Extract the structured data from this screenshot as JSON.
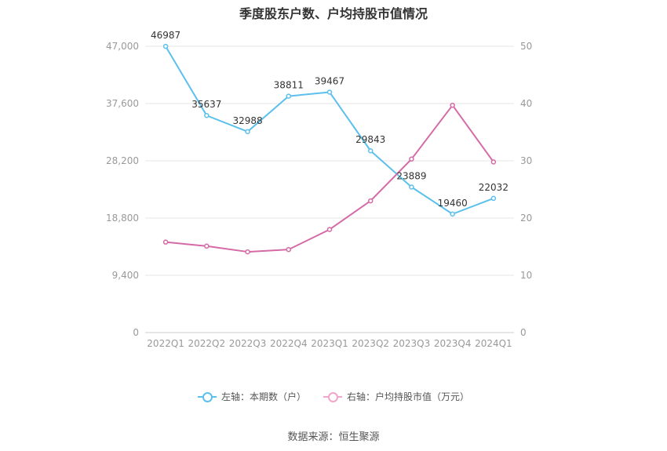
{
  "chart_data": {
    "type": "line",
    "title": "季度股东户数、户均持股市值情况",
    "categories": [
      "2022Q1",
      "2022Q2",
      "2022Q3",
      "2022Q4",
      "2023Q1",
      "2023Q2",
      "2023Q3",
      "2023Q4",
      "2024Q1"
    ],
    "left_axis": {
      "ticks": [
        "0",
        "9,400",
        "18,800",
        "28,200",
        "37,600",
        "47,000"
      ],
      "ylim": [
        0,
        47000
      ]
    },
    "right_axis": {
      "ticks": [
        "0",
        "10",
        "20",
        "30",
        "40",
        "50"
      ],
      "ylim": [
        0,
        50
      ]
    },
    "series": [
      {
        "name": "左轴：本期数（户）",
        "axis": "left",
        "color": "#5bc0eb",
        "values": [
          46987,
          35637,
          32988,
          38811,
          39467,
          29843,
          23889,
          19460,
          22032
        ],
        "labels": [
          "46987",
          "35637",
          "32988",
          "38811",
          "39467",
          "29843",
          "23889",
          "19460",
          "22032"
        ]
      },
      {
        "name": "右轴：户均持股市值（万元）",
        "axis": "right",
        "color": "#d46aa6",
        "values": [
          15.8,
          15.1,
          14.1,
          14.5,
          18.0,
          23.0,
          30.3,
          39.7,
          29.8
        ]
      }
    ],
    "grid": true,
    "legend_position": "bottom"
  },
  "source_text": "数据来源：恒生聚源"
}
